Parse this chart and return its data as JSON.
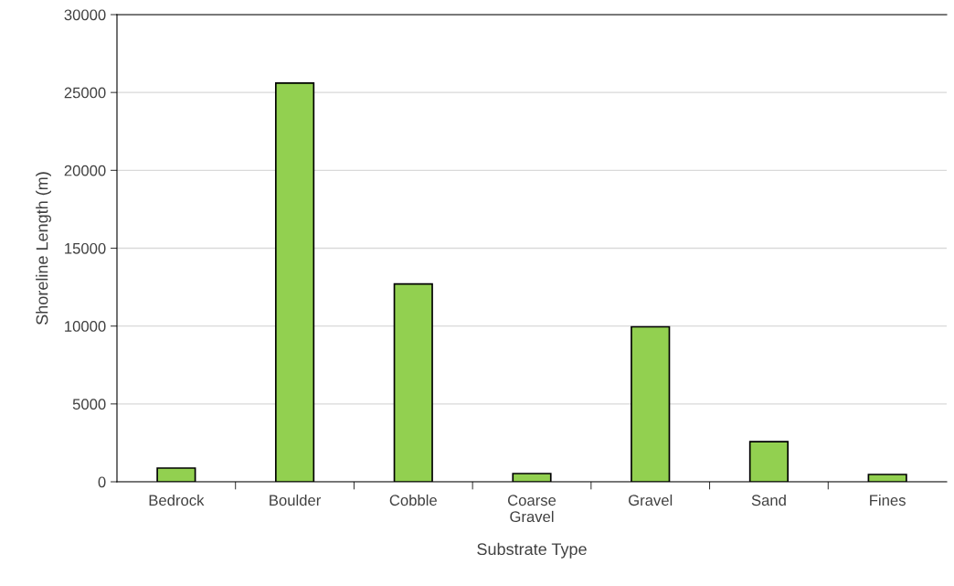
{
  "chart_data": {
    "type": "bar",
    "xlabel": "Substrate Type",
    "ylabel": "Shoreline Length (m)",
    "categories": [
      "Bedrock",
      "Boulder",
      "Cobble",
      "Coarse\nGravel",
      "Gravel",
      "Sand",
      "Fines"
    ],
    "values": [
      880,
      25600,
      12700,
      530,
      9950,
      2580,
      470
    ],
    "color": "#92d050",
    "ylim": [
      0,
      30000
    ],
    "yticks": [
      0,
      5000,
      10000,
      15000,
      20000,
      25000,
      30000
    ],
    "grid": "y"
  }
}
